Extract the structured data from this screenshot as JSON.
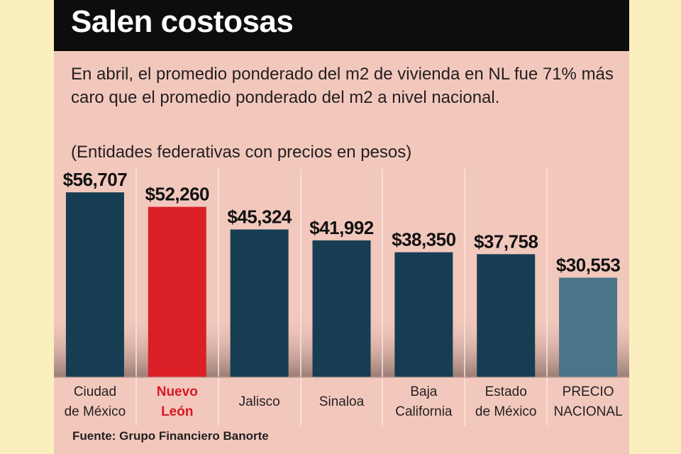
{
  "title": "Salen costosas",
  "subtitle": "En abril, el promedio ponderado del m2 de vivienda en NL fue 71% más caro que el promedio ponderado del m2 a nivel nacional.",
  "note": "(Entidades federativas con precios en pesos)",
  "source": "Fuente: Grupo Financiero Banorte",
  "colors": {
    "bar_default": "#173d52",
    "bar_highlight": "#da1f26",
    "bar_national": "#4a7488",
    "highlight_text": "#d71920",
    "title_bar": "#0d0d0d"
  },
  "chart_data": {
    "type": "bar",
    "title": "Salen costosas",
    "categories": [
      [
        "Ciudad",
        "de México"
      ],
      [
        "Nuevo",
        "León"
      ],
      [
        "Jalisco"
      ],
      [
        "Sinaloa"
      ],
      [
        "Baja",
        "California"
      ],
      [
        "Estado",
        "de México"
      ],
      [
        "PRECIO",
        "NACIONAL"
      ]
    ],
    "values": [
      56707,
      52260,
      45324,
      41992,
      38350,
      37758,
      30553
    ],
    "value_labels": [
      "$56,707",
      "$52,260",
      "$45,324",
      "$41,992",
      "$38,350",
      "$37,758",
      "$30,553"
    ],
    "highlight_index": 1,
    "national_index": 6,
    "xlabel": "",
    "ylabel": "",
    "ylim": [
      0,
      60000
    ],
    "grid": false,
    "legend": "none"
  }
}
